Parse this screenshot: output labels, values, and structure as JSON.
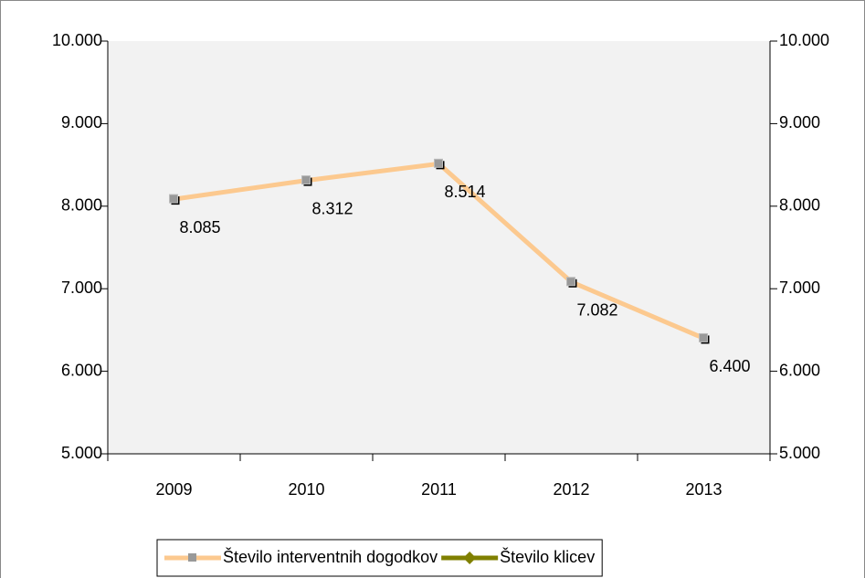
{
  "chart_data": {
    "type": "line",
    "categories": [
      "2009",
      "2010",
      "2011",
      "2012",
      "2013"
    ],
    "series": [
      {
        "name": "Število interventnih dogodkov",
        "color": "#fcc98f",
        "values": [
          8085,
          8312,
          8514,
          7082,
          6400
        ],
        "value_labels": [
          "8.085",
          "8.312",
          "8.514",
          "7.082",
          "6.400"
        ]
      },
      {
        "name": "Število klicev",
        "color": "#808000",
        "axis": "y2",
        "values": [
          null,
          null,
          null,
          null,
          null
        ]
      }
    ],
    "ylim": [
      5000,
      10000
    ],
    "yticks": [
      {
        "value": 5000,
        "label": "5.000"
      },
      {
        "value": 6000,
        "label": "6.000"
      },
      {
        "value": 7000,
        "label": "7.000"
      },
      {
        "value": 8000,
        "label": "8.000"
      },
      {
        "value": 9000,
        "label": "9.000"
      },
      {
        "value": 10000,
        "label": "10.000"
      }
    ],
    "y2lim": [
      5000,
      10000
    ],
    "y2ticks": [
      {
        "value": 5000,
        "label": "5.000"
      },
      {
        "value": 6000,
        "label": "6.000"
      },
      {
        "value": 7000,
        "label": "7.000"
      },
      {
        "value": 8000,
        "label": "8.000"
      },
      {
        "value": 9000,
        "label": "9.000"
      },
      {
        "value": 10000,
        "label": "10.000"
      }
    ],
    "legend": "bottom"
  }
}
